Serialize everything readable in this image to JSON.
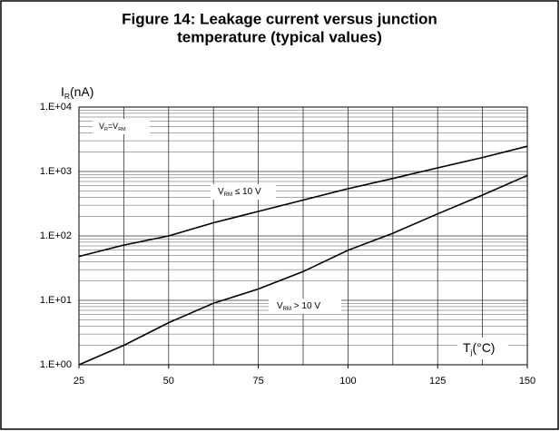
{
  "chart_data": {
    "type": "line",
    "title": [
      "Figure 14: Leakage current versus junction",
      "temperature (typical values)"
    ],
    "ylabel": [
      {
        "t": "I"
      },
      {
        "t": "R",
        "sub": true
      },
      {
        "t": "(nA)"
      }
    ],
    "xlabel": [
      {
        "t": "T"
      },
      {
        "t": "j",
        "sub": true
      },
      {
        "t": "(°C)"
      }
    ],
    "annotations": [
      [
        {
          "t": "V"
        },
        {
          "t": "R",
          "sub": true
        },
        {
          "t": "=V"
        },
        {
          "t": "RM",
          "sub": true
        }
      ]
    ],
    "x": [
      25,
      37.5,
      50,
      62.5,
      75,
      87.5,
      100,
      112.5,
      125,
      137.5,
      150
    ],
    "series": [
      {
        "name": [
          {
            "t": "V"
          },
          {
            "t": "RM",
            "sub": true
          },
          {
            "t": " ≤ 10 V"
          }
        ],
        "color": "#000000",
        "values": [
          48,
          72,
          100,
          160,
          240,
          360,
          540,
          780,
          1140,
          1650,
          2460
        ]
      },
      {
        "name": [
          {
            "t": "V"
          },
          {
            "t": "RM",
            "sub": true
          },
          {
            "t": " > 10 V"
          }
        ],
        "color": "#000000",
        "values": [
          1,
          2,
          4.5,
          9,
          15,
          28,
          60,
          110,
          220,
          430,
          870
        ]
      }
    ],
    "xlim": [
      25,
      150
    ],
    "xticks": [
      25,
      50,
      75,
      100,
      125,
      150
    ],
    "x_gridlines": [
      25,
      37.5,
      50,
      62.5,
      75,
      87.5,
      100,
      112.5,
      125,
      137.5,
      150
    ],
    "ylim": [
      1,
      10000
    ],
    "ylog": true,
    "yticks": [
      {
        "value": 1,
        "label": "1.E+00"
      },
      {
        "value": 10,
        "label": "1.E+01"
      },
      {
        "value": 100,
        "label": "1.E+02"
      },
      {
        "value": 1000,
        "label": "1.E+03"
      },
      {
        "value": 10000,
        "label": "1.E+04"
      }
    ],
    "y_minor_gridlines": [
      2,
      3,
      4,
      5,
      6,
      7,
      8,
      9,
      20,
      30,
      40,
      50,
      60,
      70,
      80,
      90,
      200,
      300,
      400,
      500,
      600,
      700,
      800,
      900,
      2000,
      3000,
      4000,
      5000,
      6000,
      7000,
      8000,
      9000
    ],
    "grid": true
  }
}
